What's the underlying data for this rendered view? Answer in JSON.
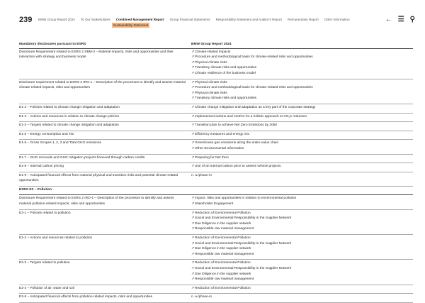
{
  "header": {
    "page_number": "239",
    "nav": [
      "BMW Group Report 2024",
      "To Our Stakeholders",
      "Combined Management Report",
      "Group Financial Statements",
      "Responsibility Statement and Auditor's Report",
      "Remuneration Report",
      "Other Information"
    ],
    "active_index": 2,
    "subnav": "Sustainability Statement",
    "icons": [
      "back-arrow-icon",
      "menu-icon",
      "search-icon"
    ]
  },
  "table": {
    "headers": [
      "Mandatory disclosures pursuant to ESRS",
      "BMW Group Report 2024"
    ],
    "rows": [
      {
        "left": "Disclosure Requirement related to ESRS 2 SBM-3 – Material impacts, risks and opportunities and their interaction with strategy and business model",
        "links": [
          "Climate-related impacts",
          "Procedure and methodological basis for climate-related risks and opportunities",
          "Physical climate risks",
          "Transitory climate risks and opportunities",
          "Climate resilience of the business model"
        ]
      },
      {
        "left": "Disclosure requirement related to ESRS 2 IRO-1 – Description of the processes to identify and assess material climate-related impacts, risks and opportunities",
        "links": [
          "Physical climate risks",
          "Procedure and methodological basis for climate-related risks and opportunities",
          "Physical climate risks",
          "Transitory climate risks and opportunities"
        ]
      },
      {
        "left": "E1-2 – Policies related to climate change mitigation and adaptation",
        "links": [
          "Climate change mitigation and adaptation as a key part of the corporate strategy"
        ]
      },
      {
        "left": "E1-3 – Actions and resources in relation to climate change policies",
        "links": [
          "Implemented actions and metrics for a holistic approach to CO₂e reduction"
        ]
      },
      {
        "left": "E1-4 – Targets related to climate change mitigation and adaptation",
        "links": [
          "Transition plan to achieve Net Zero Emissions by 2050"
        ]
      },
      {
        "left": "E1-5 – Energy consumption and mix",
        "links": [
          "Efficiency measures and energy mix"
        ]
      },
      {
        "left": "E1-6 – Gross Scopes 1, 2, 3 and Total GHG emissions",
        "links": [
          "Greenhouse gas emissions along the entire value chain",
          "Other Environmental Information"
        ]
      },
      {
        "left": "E1-7 – GHG removals and GHG mitigation projects financed through carbon credits",
        "links": [
          "Preparing for Net Zero"
        ]
      },
      {
        "left": "E1-8 – Internal carbon pricing",
        "links": [
          "Use of an internal carbon price to assess vehicle projects"
        ]
      },
      {
        "left": "E1-9 – Anticipated financial effects from material physical and transition risks and potential climate-related opportunities",
        "text": "n. a./phase-in"
      },
      {
        "section": "ESRS E2 – Pollution"
      },
      {
        "left": "Disclosure Requirement related to ESRS 2 IRO-1 – Description of the processes to identify and assess material pollution-related impacts, risks and opportunities",
        "links": [
          "Impact, risks and opportunities in relation to environmental pollution",
          "Stakeholder Engagement"
        ]
      },
      {
        "left": "E2-1 – Policies related to pollution",
        "links": [
          "Reduction of Environmental Pollution",
          "Social and Environmental Responsibility in the Supplier Network",
          "Due Diligence in the supplier network",
          "Responsible raw material management"
        ]
      },
      {
        "left": "E2-2 – Actions and resources related to pollution",
        "links": [
          "Reduction of Environmental Pollution",
          "Social and Environmental Responsibility in the Supplier Network",
          "Due Diligence in the supplier network",
          "Responsible raw material management"
        ]
      },
      {
        "left": "E2-3 – Targets related to pollution",
        "links": [
          "Reduction of Environmental Pollution",
          "Social and Environmental Responsibility in the Supplier Network",
          "Due Diligence in the supplier network",
          "Responsible raw material management"
        ]
      },
      {
        "left": "E2-4 – Pollution of air, water and soil",
        "links": [
          "Reduction of Environmental Pollution"
        ]
      },
      {
        "left": "E2-6 – Anticipated financial effects from pollution-related impacts, risks and opportunities",
        "text": "n. a./phase-in"
      }
    ]
  }
}
